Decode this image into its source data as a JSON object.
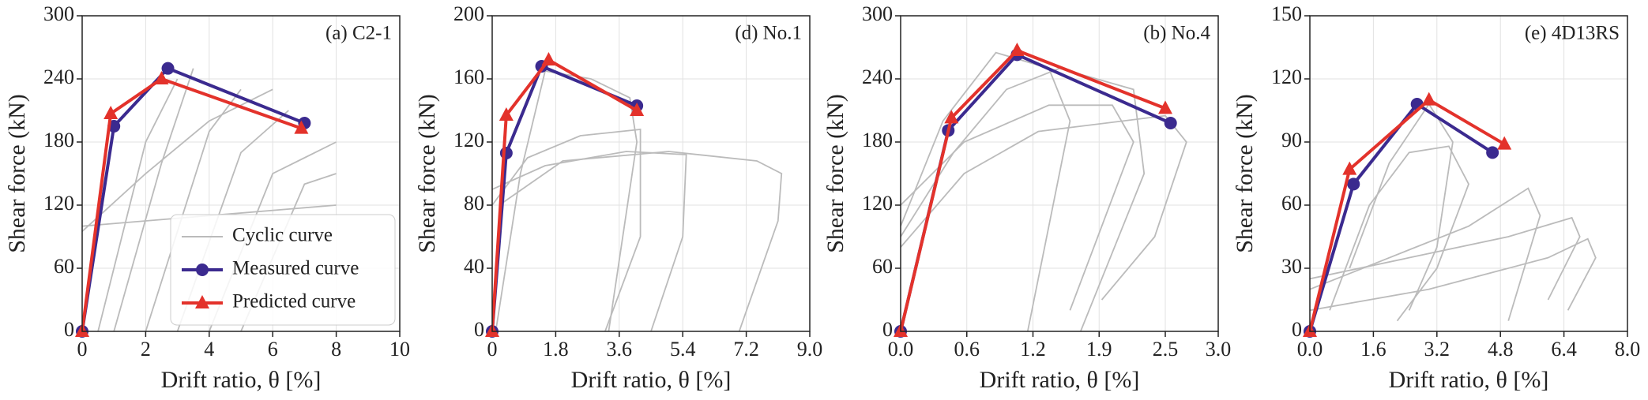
{
  "chart_data": [
    {
      "type": "line",
      "annotation": "(a) C2-1",
      "xlabel": "Drift ratio, θ [%]",
      "ylabel": "Shear force (kN)",
      "xlim": [
        0,
        10
      ],
      "xticks": [
        0,
        2,
        4,
        6,
        8,
        10
      ],
      "ylim": [
        0,
        300
      ],
      "yticks": [
        0,
        60,
        120,
        180,
        240,
        300
      ],
      "grid": true,
      "legend": "lower right",
      "series": [
        {
          "name": "Cyclic curve",
          "color": "#bbbbbb",
          "marker": "none",
          "x": [
            0,
            2,
            4,
            6,
            null,
            0.5,
            2,
            3,
            null,
            2,
            4,
            5,
            null,
            4,
            6,
            8,
            null,
            0,
            4,
            8,
            null,
            5,
            7,
            8,
            null,
            1,
            2.5,
            3.5,
            null,
            3,
            5,
            6.5
          ],
          "values": [
            95,
            150,
            200,
            230,
            null,
            0,
            180,
            240,
            null,
            0,
            190,
            230,
            null,
            0,
            150,
            180,
            null,
            100,
            110,
            120,
            null,
            0,
            140,
            150,
            null,
            0,
            160,
            250,
            null,
            0,
            170,
            210
          ]
        },
        {
          "name": "Measured curve",
          "color": "#3b2a8f",
          "marker": "circle",
          "x": [
            0,
            1,
            2.7,
            7
          ],
          "values": [
            0,
            195,
            250,
            198
          ]
        },
        {
          "name": "Predicted curve",
          "color": "#e3322b",
          "marker": "triangle",
          "x": [
            0,
            0.9,
            2.5,
            6.9
          ],
          "values": [
            0,
            207,
            240,
            193
          ]
        }
      ]
    },
    {
      "type": "line",
      "annotation": "(d) No.1",
      "xlabel": "Drift ratio, θ [%]",
      "ylabel": "Shear force (kN)",
      "xlim": [
        0,
        9
      ],
      "xticks": [
        0,
        1.8,
        3.6,
        5.4,
        7.2,
        {
          "value": 9,
          "label": "9.0"
        }
      ],
      "ylim": [
        0,
        200
      ],
      "yticks": [
        0,
        40,
        80,
        120,
        160,
        200
      ],
      "grid": true,
      "series": [
        {
          "color": "#bbbbbb",
          "marker": "none",
          "x": [
            0,
            1,
            2.5,
            4.2,
            4.2,
            3.2,
            null,
            0,
            1.5,
            3.8,
            5.5,
            5.4,
            4.5,
            null,
            0.2,
            2,
            5,
            7.5,
            8.2,
            8.1,
            7.0,
            null,
            0.1,
            0.8,
            1.5,
            2.8,
            3.9,
            4.1,
            3.3
          ],
          "values": [
            80,
            110,
            124,
            128,
            60,
            0,
            null,
            90,
            105,
            114,
            112,
            60,
            0,
            null,
            80,
            108,
            114,
            108,
            100,
            70,
            0,
            null,
            0,
            100,
            165,
            160,
            148,
            120,
            0
          ]
        },
        {
          "color": "#3b2a8f",
          "marker": "circle",
          "x": [
            0,
            0.4,
            1.4,
            4.1
          ],
          "values": [
            0,
            113,
            168,
            143
          ]
        },
        {
          "color": "#e3322b",
          "marker": "triangle",
          "x": [
            0,
            0.4,
            1.6,
            4.1
          ],
          "values": [
            0,
            137,
            172,
            140
          ]
        }
      ]
    },
    {
      "type": "line",
      "annotation": "(b) No.4",
      "xlabel": "Drift ratio, θ [%]",
      "ylabel": "Shear force (kN)",
      "xlim": [
        0,
        3
      ],
      "xticks": [
        {
          "value": 0,
          "label": "0.0"
        },
        {
          "value": 0.625,
          "label": "0.6"
        },
        {
          "value": 1.25,
          "label": "1.2"
        },
        {
          "value": 1.875,
          "label": "1.9"
        },
        2.5,
        {
          "value": 3,
          "label": "3.0"
        }
      ],
      "ylim": [
        0,
        300
      ],
      "yticks": [
        0,
        60,
        120,
        180,
        240,
        300
      ],
      "grid": true,
      "series": [
        {
          "color": "#bbbbbb",
          "marker": "none",
          "x": [
            0,
            0.5,
            1,
            1.5,
            2.2,
            2.3,
            1.7,
            null,
            0,
            0.6,
            1.3,
            2.5,
            2.7,
            2.4,
            1.9,
            null,
            0,
            0.4,
            0.9,
            1.4,
            1.6,
            1.2,
            null,
            0,
            0.6,
            1.4,
            2.0,
            2.2,
            1.6
          ],
          "values": [
            90,
            170,
            230,
            250,
            230,
            150,
            0,
            null,
            80,
            150,
            190,
            205,
            180,
            90,
            30,
            null,
            100,
            200,
            265,
            250,
            200,
            0,
            null,
            120,
            180,
            215,
            215,
            180,
            20
          ]
        },
        {
          "color": "#3b2a8f",
          "marker": "circle",
          "x": [
            0,
            0.45,
            1.1,
            2.55
          ],
          "values": [
            0,
            191,
            263,
            198
          ]
        },
        {
          "color": "#e3322b",
          "marker": "triangle",
          "x": [
            0,
            0.48,
            1.1,
            2.5
          ],
          "values": [
            0,
            203,
            267,
            212
          ]
        }
      ]
    },
    {
      "type": "line",
      "annotation": "(e) 4D13RS",
      "xlabel": "Drift ratio, θ [%]",
      "ylabel": "Shear force (kN)",
      "xlim": [
        0,
        8
      ],
      "xticks": [
        {
          "value": 0,
          "label": "0.0"
        },
        1.6,
        3.2,
        4.8,
        6.4,
        {
          "value": 8,
          "label": "8.0"
        }
      ],
      "ylim": [
        0,
        150
      ],
      "yticks": [
        0,
        30,
        60,
        90,
        120,
        150
      ],
      "grid": true,
      "series": [
        {
          "color": "#bbbbbb",
          "marker": "none",
          "x": [
            0,
            2,
            4,
            5.5,
            5.8,
            5.0,
            null,
            0,
            3,
            6,
            7.0,
            7.2,
            6.5,
            null,
            0,
            2.5,
            5,
            6.6,
            6.8,
            6.0,
            null,
            0.5,
            1.5,
            2.5,
            3.5,
            4.0,
            3.2,
            2.2,
            null,
            1,
            2,
            3,
            3.6,
            3.2,
            2.5
          ],
          "values": [
            20,
            35,
            50,
            68,
            55,
            5,
            null,
            10,
            20,
            35,
            44,
            35,
            10,
            null,
            25,
            35,
            45,
            54,
            45,
            15,
            null,
            10,
            60,
            85,
            88,
            70,
            30,
            5,
            null,
            30,
            80,
            108,
            90,
            40,
            10
          ]
        },
        {
          "color": "#3b2a8f",
          "marker": "circle",
          "x": [
            0,
            1.1,
            2.7,
            4.6
          ],
          "values": [
            0,
            70,
            108,
            85
          ]
        },
        {
          "color": "#e3322b",
          "marker": "triangle",
          "x": [
            0,
            1.0,
            3.0,
            4.9
          ],
          "values": [
            0,
            77,
            110,
            89
          ]
        }
      ]
    }
  ]
}
